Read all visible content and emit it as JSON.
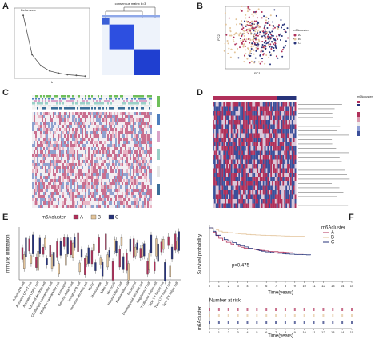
{
  "panels": {
    "A": {
      "label": "A",
      "delta_title": "Delta area",
      "x_label": "k",
      "consensus_title": "consensus matrix k=3",
      "delta": {
        "x": [
          2,
          3,
          4,
          5,
          6,
          7,
          8,
          9
        ],
        "values": [
          0.85,
          0.32,
          0.17,
          0.1,
          0.07,
          0.05,
          0.04,
          0.03
        ],
        "xlim": [
          1,
          9.5
        ],
        "ylim": [
          0,
          0.95
        ]
      }
    },
    "B": {
      "label": "B",
      "x_label": "PC1",
      "y_label": "PC2",
      "legend_title": "m6Acluster",
      "legend": [
        "A",
        "B",
        "C"
      ]
    },
    "C": {
      "label": "C"
    },
    "D": {
      "label": "D",
      "legend_title": "m6Acluster"
    },
    "E": {
      "label": "E",
      "legend_title": "m6Acluster",
      "legend": [
        "A",
        "B",
        "C"
      ],
      "y_label": "Immune infiltration",
      "categories": [
        "Activated B cell",
        "Activated CD4 T cell",
        "Activated CD8 T cell",
        "Activated dendritic cell",
        "CD56bright natural killer cell",
        "CD56dim natural killer cell",
        "Eosinophil",
        "Gamma delta T cell",
        "Immature B cell",
        "Immature dendritic cell",
        "MDSC",
        "Macrophage",
        "Mast cell",
        "Monocyte",
        "Natural killer T cell",
        "Natural killer cell",
        "Neutrophil",
        "Plasmacytoid dendritic cell",
        "Regulatory T cell",
        "T follicular helper cell",
        "Type 1 T helper cell",
        "Type 17 T helper cell",
        "Type 2 T helper cell"
      ]
    },
    "F": {
      "label": "F",
      "legend_title": "m6Acluster",
      "legend": [
        "A",
        "B",
        "C"
      ],
      "y_label": "Survival probability",
      "x_label": "Time(years)",
      "pvalue": "p=0.475",
      "risk_title": "Number at risk",
      "risk_y_label": "m6Acluster",
      "xticks": [
        0,
        1,
        2,
        3,
        4,
        5,
        6,
        7,
        8,
        9,
        10,
        11,
        12,
        13,
        14,
        15
      ],
      "xlim": [
        0,
        15
      ]
    }
  },
  "colors": [
    "#b0305a",
    "#e3c49a",
    "#27337a"
  ]
}
